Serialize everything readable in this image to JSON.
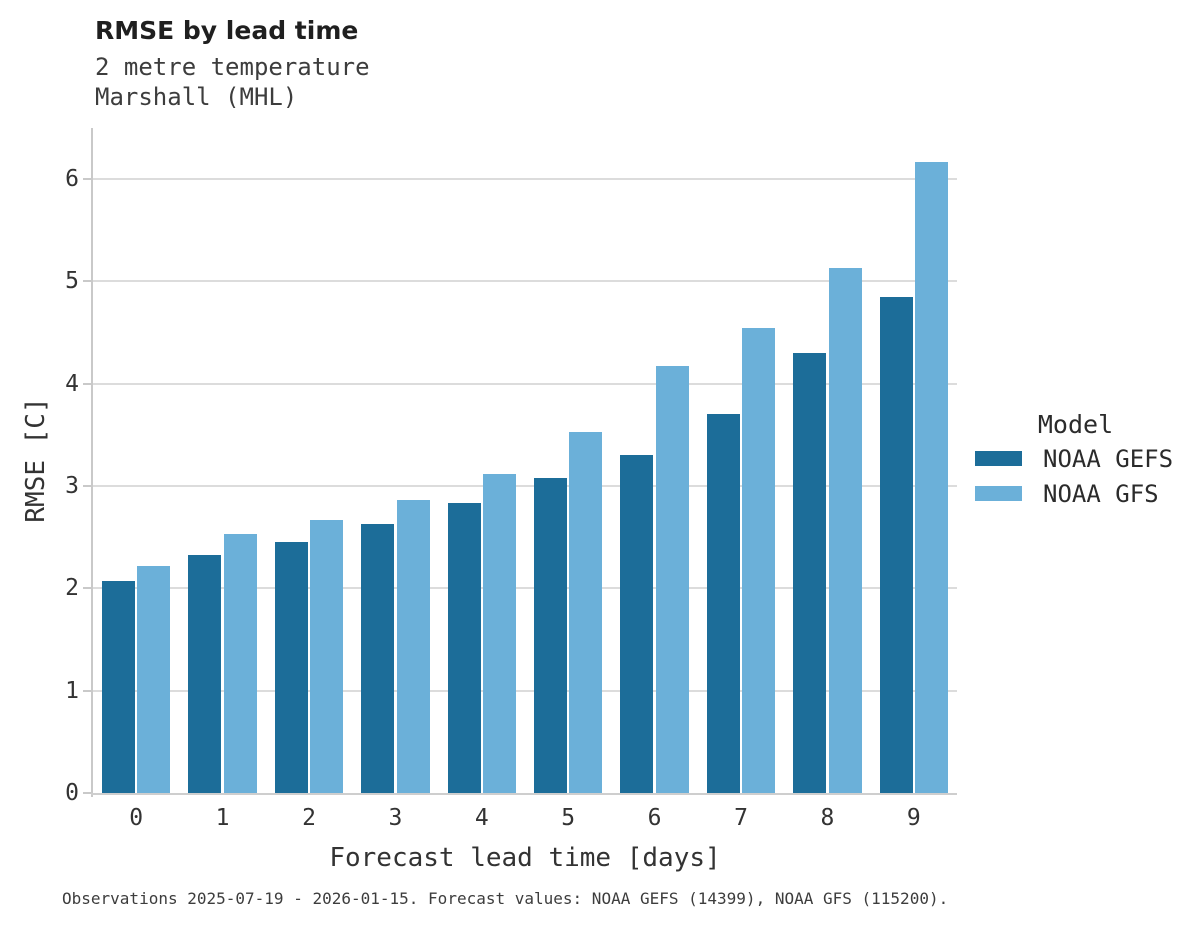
{
  "header": {
    "title": "RMSE by lead time",
    "subtitle_line1": "2 metre temperature",
    "subtitle_line2": "Marshall (MHL)"
  },
  "chart_data": {
    "type": "bar",
    "categories": [
      "0",
      "1",
      "2",
      "3",
      "4",
      "5",
      "6",
      "7",
      "8",
      "9"
    ],
    "series": [
      {
        "name": "NOAA GEFS",
        "color": "#1c6d99",
        "values": [
          2.07,
          2.33,
          2.45,
          2.63,
          2.83,
          3.08,
          3.3,
          3.7,
          4.3,
          4.85
        ]
      },
      {
        "name": "NOAA GFS",
        "color": "#6bb0d9",
        "values": [
          2.22,
          2.53,
          2.67,
          2.86,
          3.12,
          3.53,
          4.17,
          4.55,
          5.13,
          6.17
        ]
      }
    ],
    "title": "RMSE by lead time",
    "xlabel": "Forecast lead time [days]",
    "ylabel": "RMSE [C]",
    "yticks": [
      0,
      1,
      2,
      3,
      4,
      5,
      6
    ],
    "ylim": [
      0,
      6.5
    ],
    "grid": "horizontal",
    "legend_title": "Model",
    "legend_position": "right",
    "gridline_color": "#dcdcdc",
    "spine_color": "#c9c9c9"
  },
  "caption": "Observations 2025-07-19 - 2026-01-15. Forecast values: NOAA GEFS (14399), NOAA GFS (115200)."
}
